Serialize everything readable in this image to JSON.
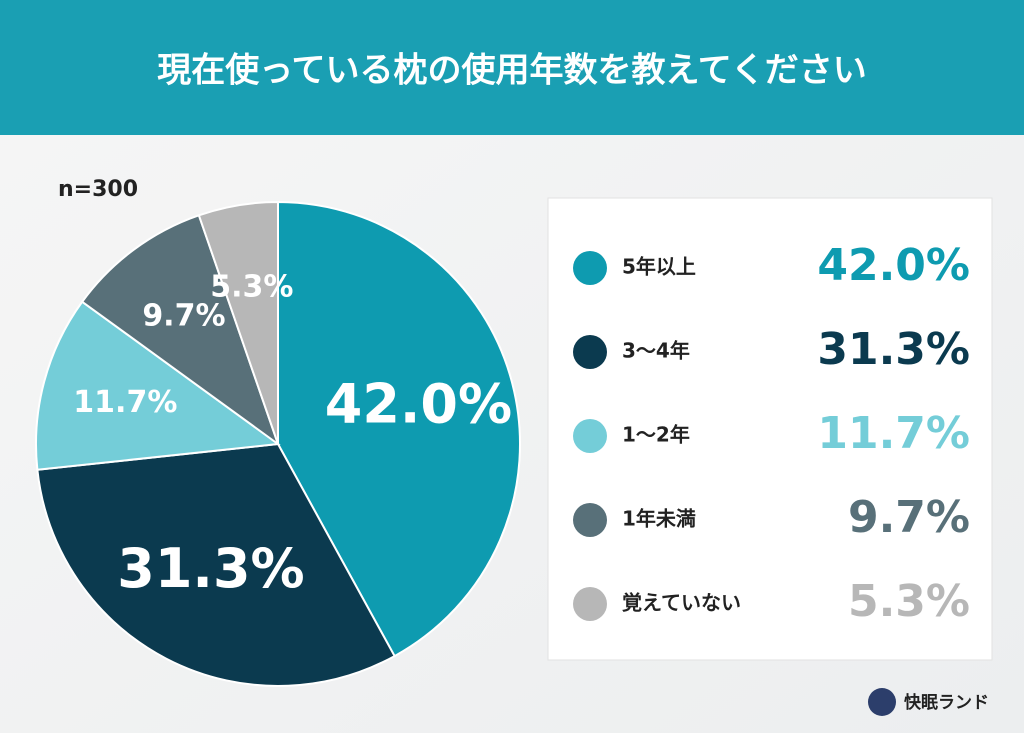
{
  "chart_data": {
    "type": "pie",
    "title": "現在使っている枕の使用年数を教えてください",
    "note": "n=300",
    "categories": [
      "5年以上",
      "3〜4年",
      "1〜2年",
      "1年未満",
      "覚えていない"
    ],
    "values": [
      42.0,
      31.3,
      11.7,
      9.7,
      5.3
    ],
    "value_labels": [
      "42.0%",
      "31.3%",
      "11.7%",
      "9.7%",
      "5.3%"
    ],
    "colors": [
      "#0e9bb0",
      "#0b3a4f",
      "#74cdd8",
      "#587079",
      "#b7b7b7"
    ]
  },
  "brand": "快眠ランド"
}
